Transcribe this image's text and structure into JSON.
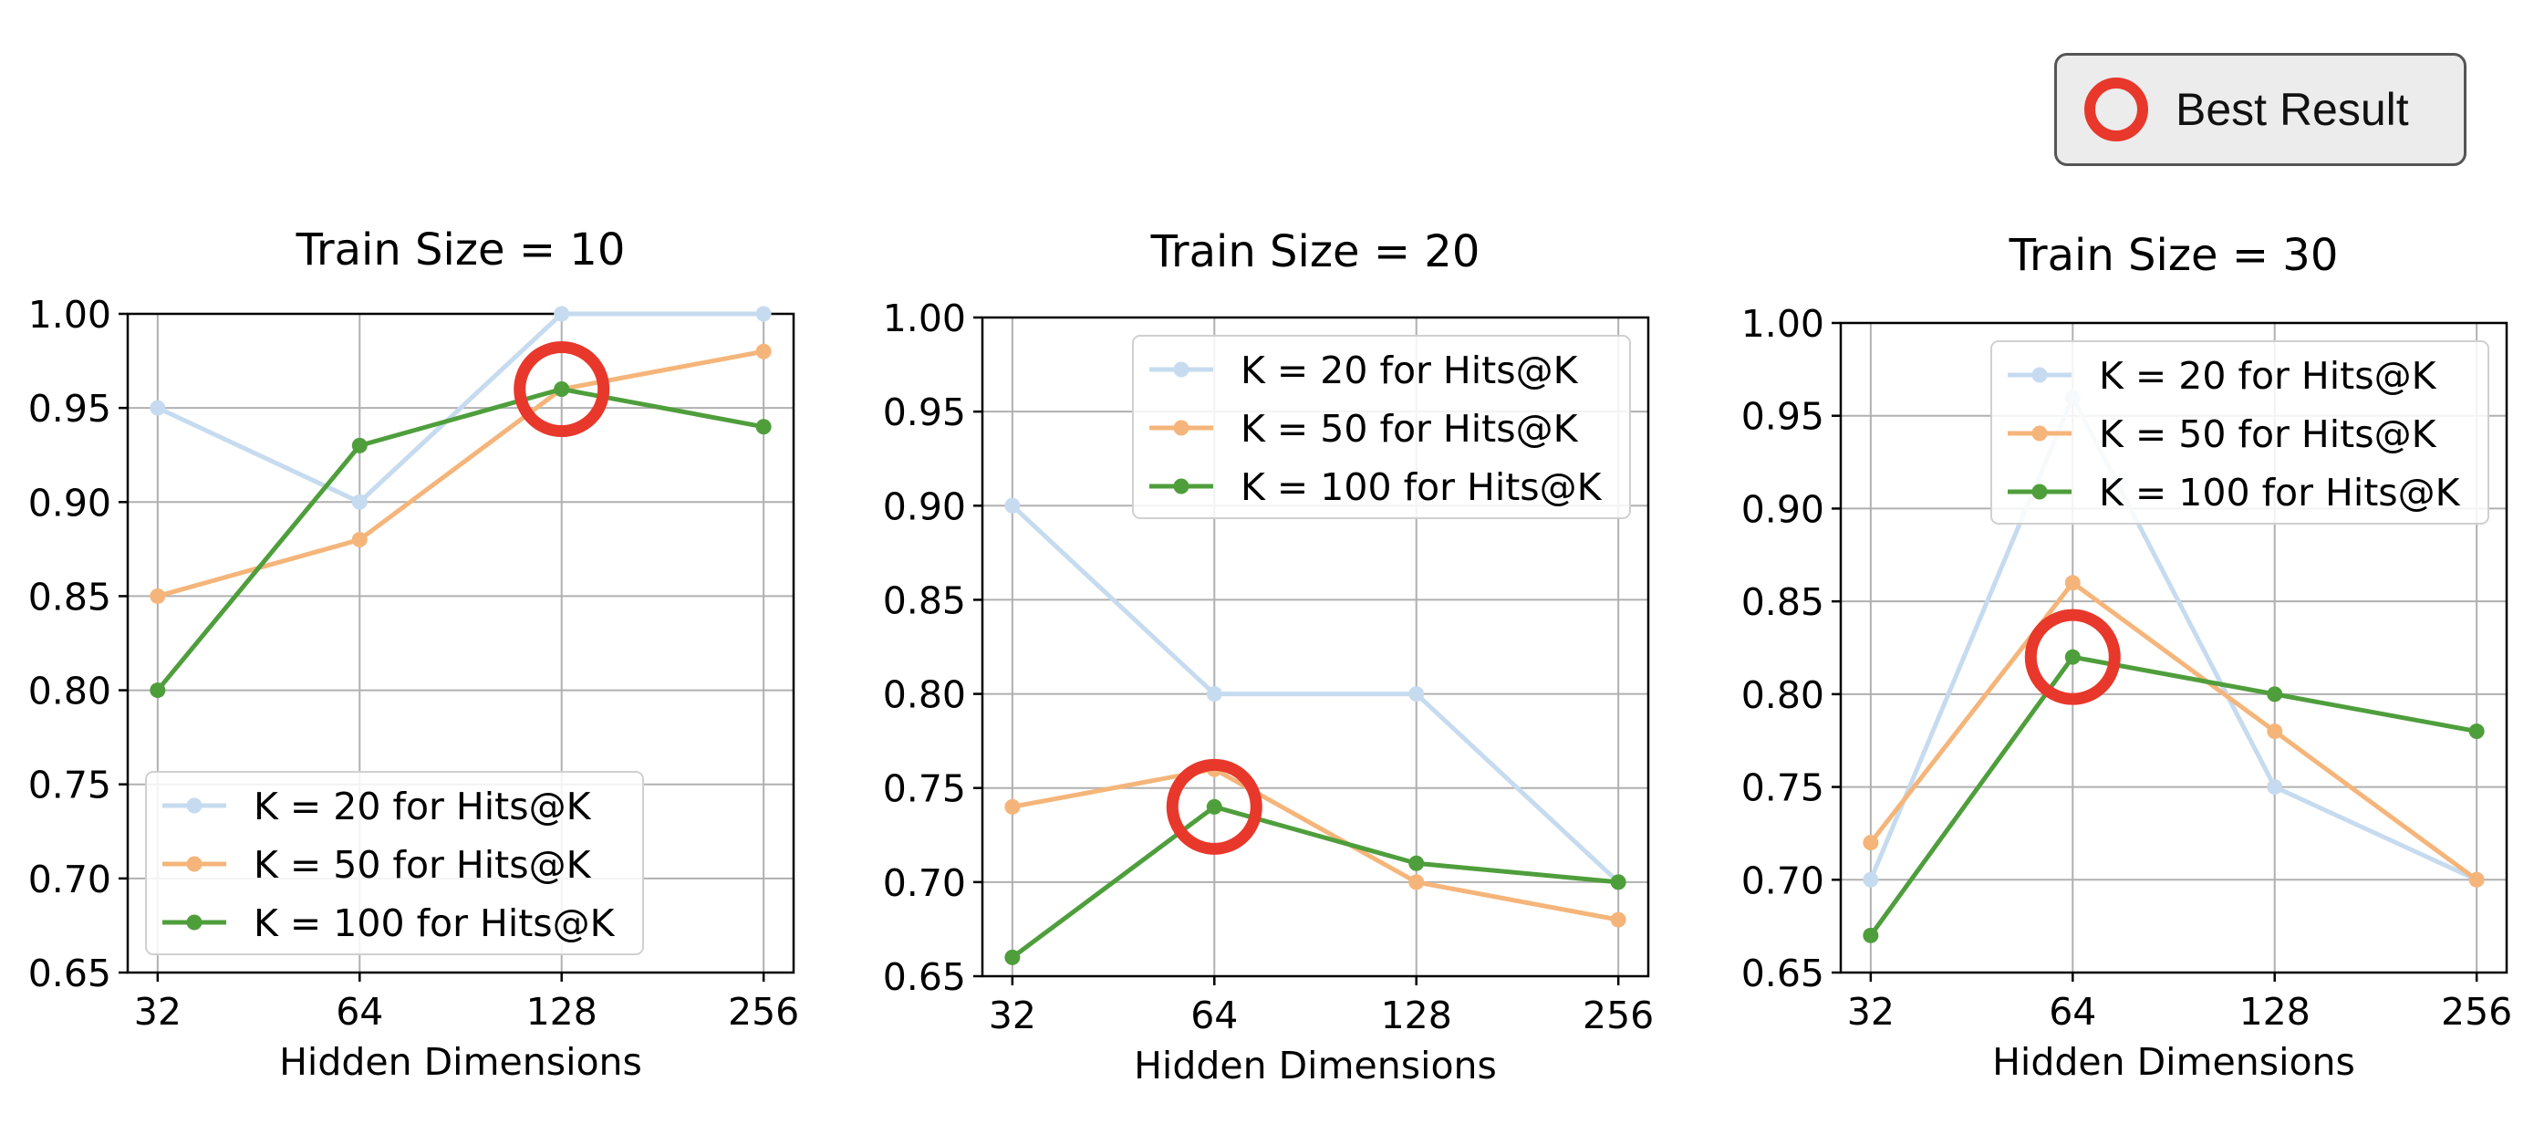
{
  "badge": {
    "label": "Best Result",
    "ring_color": "#e8382b"
  },
  "chart_data": [
    {
      "type": "line",
      "title": "Train Size = 10",
      "xlabel": "Hidden Dimensions",
      "ylabel": "",
      "x": [
        "32",
        "64",
        "128",
        "256"
      ],
      "ylim": [
        0.65,
        1.0
      ],
      "yticks": [
        "0.65",
        "0.70",
        "0.75",
        "0.80",
        "0.85",
        "0.90",
        "0.95",
        "1.00"
      ],
      "grid": true,
      "legend_position": "lower-left",
      "series": [
        {
          "name": "K = 20 for Hits@K",
          "color": "#c6dbef",
          "values": [
            0.95,
            0.9,
            1.0,
            1.0
          ]
        },
        {
          "name": "K = 50 for Hits@K",
          "color": "#f5b57a",
          "values": [
            0.85,
            0.88,
            0.96,
            0.98
          ]
        },
        {
          "name": "K = 100 for Hits@K",
          "color": "#4f9e3c",
          "values": [
            0.8,
            0.93,
            0.96,
            0.94
          ]
        }
      ],
      "best_result": {
        "x": "128",
        "y": 0.96
      }
    },
    {
      "type": "line",
      "title": "Train Size = 20",
      "xlabel": "Hidden Dimensions",
      "ylabel": "",
      "x": [
        "32",
        "64",
        "128",
        "256"
      ],
      "ylim": [
        0.65,
        1.0
      ],
      "yticks": [
        "0.65",
        "0.70",
        "0.75",
        "0.80",
        "0.85",
        "0.90",
        "0.95",
        "1.00"
      ],
      "grid": true,
      "legend_position": "upper-right",
      "series": [
        {
          "name": "K = 20 for Hits@K",
          "color": "#c6dbef",
          "values": [
            0.9,
            0.8,
            0.8,
            0.7
          ]
        },
        {
          "name": "K = 50 for Hits@K",
          "color": "#f5b57a",
          "values": [
            0.74,
            0.76,
            0.7,
            0.68
          ]
        },
        {
          "name": "K = 100 for Hits@K",
          "color": "#4f9e3c",
          "values": [
            0.66,
            0.74,
            0.71,
            0.7
          ]
        }
      ],
      "best_result": {
        "x": "64",
        "y": 0.74
      }
    },
    {
      "type": "line",
      "title": "Train Size = 30",
      "xlabel": "Hidden Dimensions",
      "ylabel": "",
      "x": [
        "32",
        "64",
        "128",
        "256"
      ],
      "ylim": [
        0.65,
        1.0
      ],
      "yticks": [
        "0.65",
        "0.70",
        "0.75",
        "0.80",
        "0.85",
        "0.90",
        "0.95",
        "1.00"
      ],
      "grid": true,
      "legend_position": "upper-right",
      "series": [
        {
          "name": "K = 20 for Hits@K",
          "color": "#c6dbef",
          "values": [
            0.7,
            0.96,
            0.75,
            0.7
          ]
        },
        {
          "name": "K = 50 for Hits@K",
          "color": "#f5b57a",
          "values": [
            0.72,
            0.86,
            0.78,
            0.7
          ]
        },
        {
          "name": "K = 100 for Hits@K",
          "color": "#4f9e3c",
          "values": [
            0.67,
            0.82,
            0.8,
            0.78
          ]
        }
      ],
      "best_result": {
        "x": "64",
        "y": 0.82
      }
    }
  ]
}
